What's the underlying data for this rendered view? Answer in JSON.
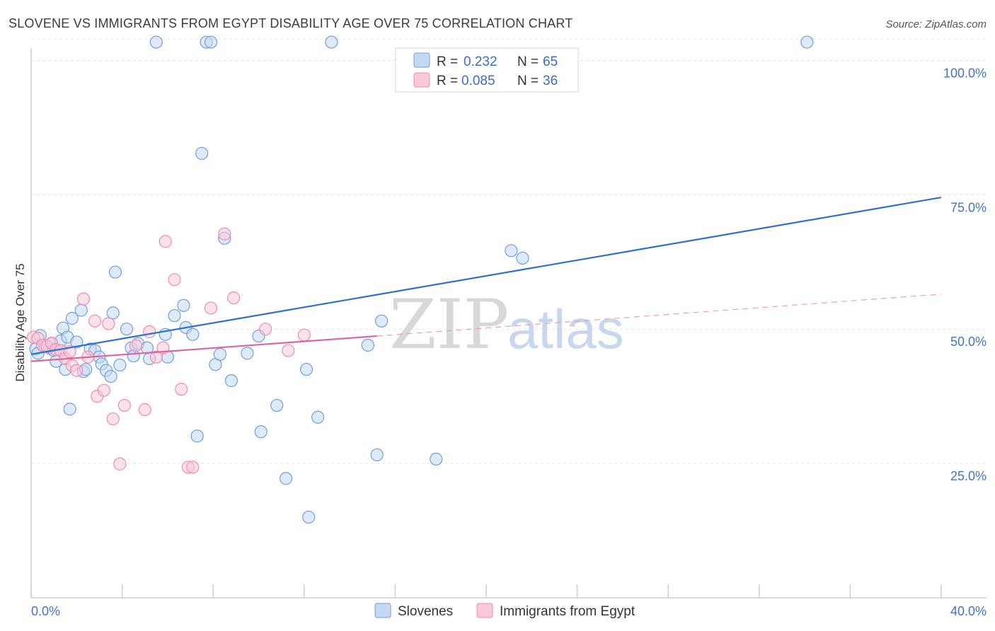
{
  "chart_data": {
    "type": "scatter",
    "title": "SLOVENE VS IMMIGRANTS FROM EGYPT DISABILITY AGE OVER 75 CORRELATION CHART",
    "source": "Source: ZipAtlas.com",
    "ylabel": "Disability Age Over 75",
    "xlabel": "",
    "xlim": [
      0,
      40
    ],
    "ylim": [
      0,
      104
    ],
    "x_tick_labels": [
      {
        "value": 0,
        "label": "0.0%"
      },
      {
        "value": 40,
        "label": "40.0%"
      }
    ],
    "y_tick_labels": [
      {
        "value": 25,
        "label": "25.0%"
      },
      {
        "value": 50,
        "label": "50.0%"
      },
      {
        "value": 75,
        "label": "75.0%"
      },
      {
        "value": 100,
        "label": "100.0%"
      }
    ],
    "grid": true,
    "watermark": {
      "part1": "ZIP",
      "part2": "atlas"
    },
    "legend_position": "top-center",
    "series": [
      {
        "name": "Slovenes",
        "color": "#6f9ee0",
        "fill": "#c5d9f3",
        "r_label": "R =",
        "r_value": "0.232",
        "n_label": "N =",
        "n_value": "65",
        "trend": {
          "x0": 0,
          "y0": 45.3,
          "x1": 40,
          "y1": 74.5,
          "color": "#2e6fd0"
        },
        "points": [
          [
            0.2,
            46.3
          ],
          [
            0.3,
            45.5
          ],
          [
            0.5,
            47.0
          ],
          [
            0.6,
            46.8
          ],
          [
            0.8,
            46.5
          ],
          [
            0.9,
            47.2
          ],
          [
            1.0,
            46.0
          ],
          [
            1.1,
            44.0
          ],
          [
            1.3,
            47.8
          ],
          [
            1.4,
            50.2
          ],
          [
            1.5,
            42.5
          ],
          [
            1.6,
            48.5
          ],
          [
            1.7,
            35.1
          ],
          [
            1.8,
            52.0
          ],
          [
            2.2,
            53.5
          ],
          [
            2.3,
            42.1
          ],
          [
            2.4,
            42.5
          ],
          [
            2.6,
            46.3
          ],
          [
            2.8,
            46.0
          ],
          [
            3.0,
            44.8
          ],
          [
            3.1,
            43.5
          ],
          [
            3.3,
            42.3
          ],
          [
            3.5,
            41.2
          ],
          [
            3.6,
            53.0
          ],
          [
            3.7,
            60.6
          ],
          [
            3.9,
            43.3
          ],
          [
            4.2,
            50.0
          ],
          [
            4.4,
            46.5
          ],
          [
            4.5,
            45.0
          ],
          [
            4.7,
            47.3
          ],
          [
            5.1,
            46.5
          ],
          [
            5.2,
            44.5
          ],
          [
            5.5,
            103.4
          ],
          [
            5.9,
            49.0
          ],
          [
            6.3,
            52.5
          ],
          [
            6.7,
            54.4
          ],
          [
            6.8,
            50.3
          ],
          [
            7.1,
            49.0
          ],
          [
            7.3,
            30.1
          ],
          [
            7.5,
            82.7
          ],
          [
            7.7,
            103.4
          ],
          [
            7.9,
            103.4
          ],
          [
            8.1,
            43.4
          ],
          [
            8.3,
            45.3
          ],
          [
            8.5,
            66.9
          ],
          [
            8.8,
            40.4
          ],
          [
            9.5,
            45.5
          ],
          [
            10.0,
            48.7
          ],
          [
            10.1,
            30.9
          ],
          [
            10.8,
            35.8
          ],
          [
            11.2,
            22.2
          ],
          [
            12.1,
            42.5
          ],
          [
            12.2,
            15.0
          ],
          [
            12.6,
            33.6
          ],
          [
            13.2,
            103.4
          ],
          [
            14.8,
            47.0
          ],
          [
            15.2,
            26.6
          ],
          [
            15.4,
            51.5
          ],
          [
            17.8,
            25.8
          ],
          [
            21.1,
            64.6
          ],
          [
            21.6,
            63.2
          ],
          [
            34.1,
            103.4
          ],
          [
            0.4,
            48.8
          ],
          [
            2.0,
            47.6
          ],
          [
            6.0,
            44.8
          ]
        ]
      },
      {
        "name": "Immigrants from Egypt",
        "color": "#f08cab",
        "fill": "#f8c9d8",
        "r_label": "R =",
        "r_value": "0.085",
        "n_label": "N =",
        "n_value": "36",
        "trend": {
          "x0": 0,
          "y0": 44.0,
          "x1": 15.2,
          "y1": 48.7,
          "color": "#e0649a"
        },
        "trend_ext": {
          "x0": 15.2,
          "y0": 48.7,
          "x1": 40,
          "y1": 56.5,
          "color": "#e8a0b8"
        },
        "points": [
          [
            0.1,
            48.5
          ],
          [
            0.3,
            48.3
          ],
          [
            0.5,
            47.0
          ],
          [
            0.7,
            46.8
          ],
          [
            0.9,
            47.4
          ],
          [
            1.1,
            46.2
          ],
          [
            1.3,
            46.0
          ],
          [
            1.5,
            44.5
          ],
          [
            1.7,
            45.8
          ],
          [
            1.8,
            43.2
          ],
          [
            2.0,
            42.3
          ],
          [
            2.3,
            55.6
          ],
          [
            2.5,
            44.8
          ],
          [
            2.8,
            51.5
          ],
          [
            2.9,
            37.5
          ],
          [
            3.2,
            38.6
          ],
          [
            3.4,
            51.0
          ],
          [
            3.6,
            33.3
          ],
          [
            3.9,
            24.9
          ],
          [
            4.1,
            35.8
          ],
          [
            4.6,
            46.9
          ],
          [
            5.0,
            35.0
          ],
          [
            5.2,
            49.5
          ],
          [
            5.5,
            44.8
          ],
          [
            5.8,
            46.5
          ],
          [
            5.9,
            66.3
          ],
          [
            6.3,
            59.2
          ],
          [
            6.6,
            38.8
          ],
          [
            6.9,
            24.3
          ],
          [
            7.1,
            24.3
          ],
          [
            7.9,
            53.9
          ],
          [
            8.5,
            67.7
          ],
          [
            8.9,
            55.8
          ],
          [
            10.3,
            50.0
          ],
          [
            11.3,
            46.0
          ],
          [
            12.0,
            48.9
          ]
        ]
      }
    ]
  }
}
